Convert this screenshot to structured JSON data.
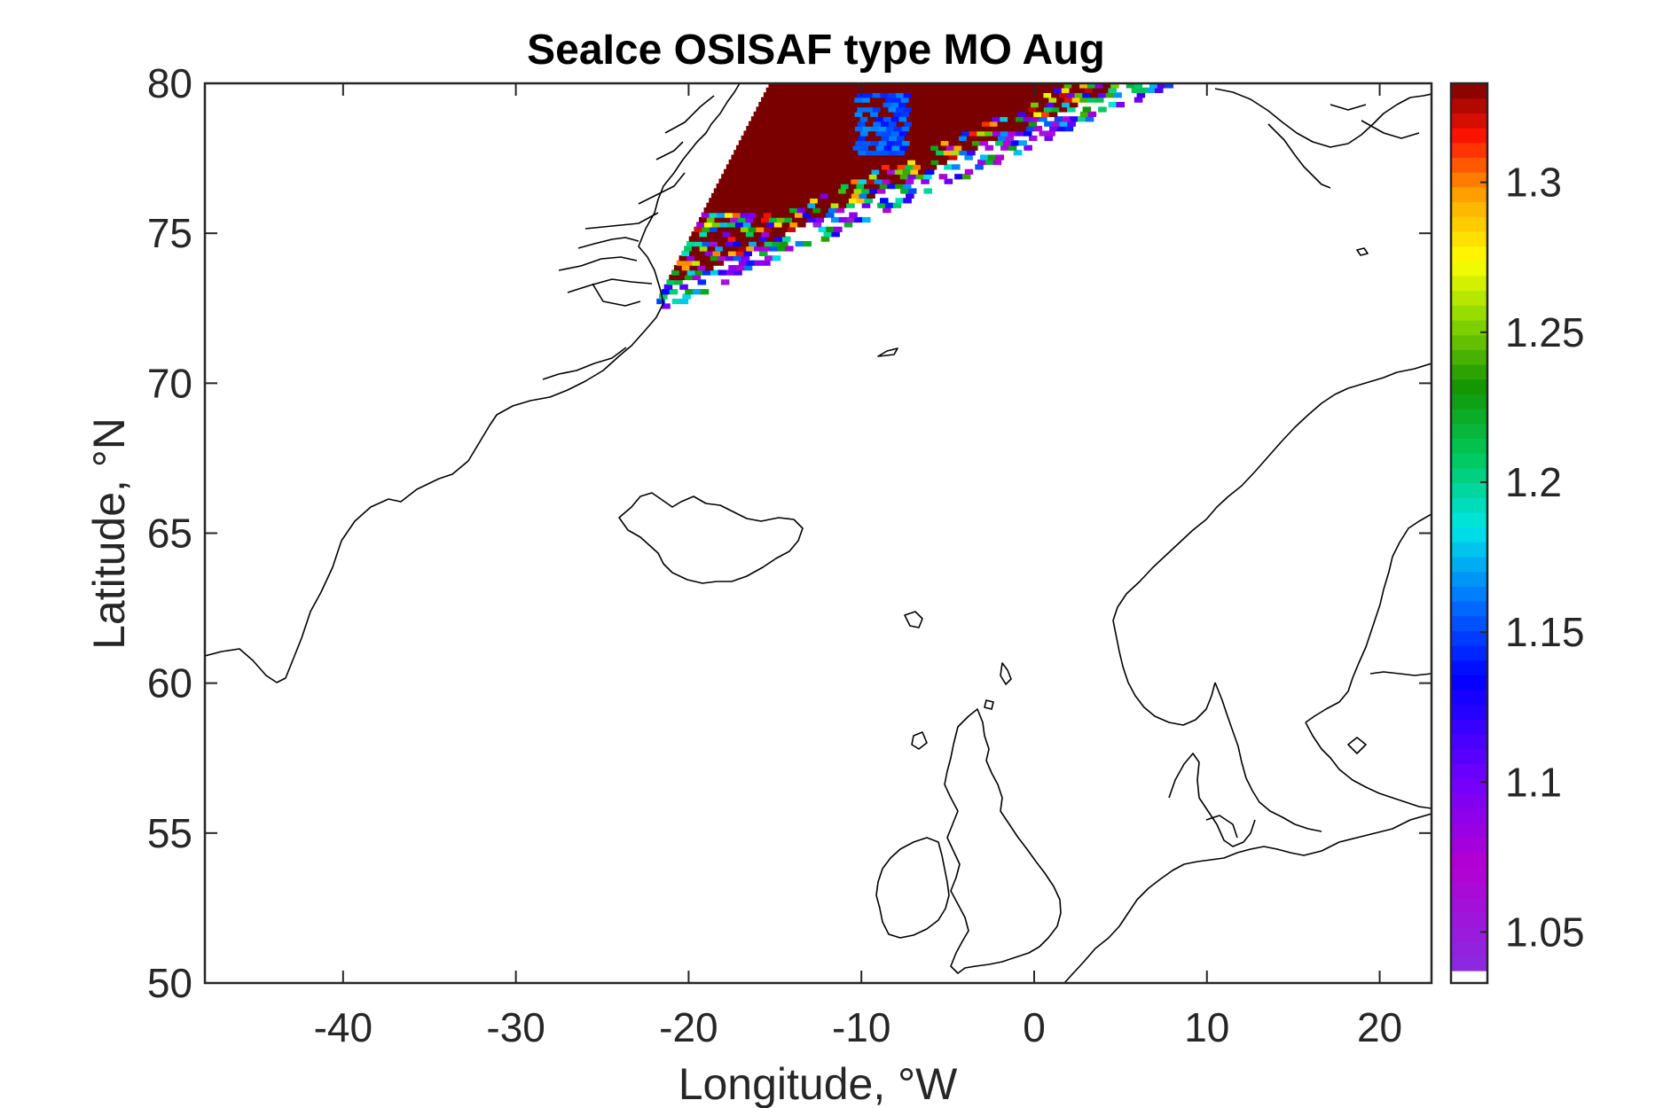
{
  "chart_data": {
    "type": "heatmap",
    "title": "SeaIce OSISAF type MO Aug",
    "xlabel": "Longitude, °W",
    "ylabel": "Latitude, °N",
    "xlim": [
      -48,
      23
    ],
    "ylim": [
      50,
      80
    ],
    "xticks": [
      "-40",
      "-30",
      "-20",
      "-10",
      "0",
      "10",
      "20"
    ],
    "xtick_values": [
      -40,
      -30,
      -20,
      -10,
      0,
      10,
      20
    ],
    "yticks": [
      "50",
      "55",
      "60",
      "65",
      "70",
      "75",
      "80"
    ],
    "ytick_values": [
      50,
      55,
      60,
      65,
      70,
      75,
      80
    ],
    "grid": false,
    "colorbar": {
      "range": [
        1.033,
        1.333
      ],
      "ticks": [
        "1.05",
        "1.1",
        "1.15",
        "1.2",
        "1.25",
        "1.3"
      ],
      "tick_values": [
        1.05,
        1.1,
        1.15,
        1.2,
        1.25,
        1.3
      ],
      "colormap": "rainbow",
      "low_color": "#ffffff",
      "high_color": "#7a0000"
    },
    "field": {
      "description_region": "Fram Strait / NE Greenland coast",
      "extent_lon": [
        -21,
        8
      ],
      "extent_lat": [
        72.5,
        80
      ],
      "dominant_value": 1.333
    }
  }
}
